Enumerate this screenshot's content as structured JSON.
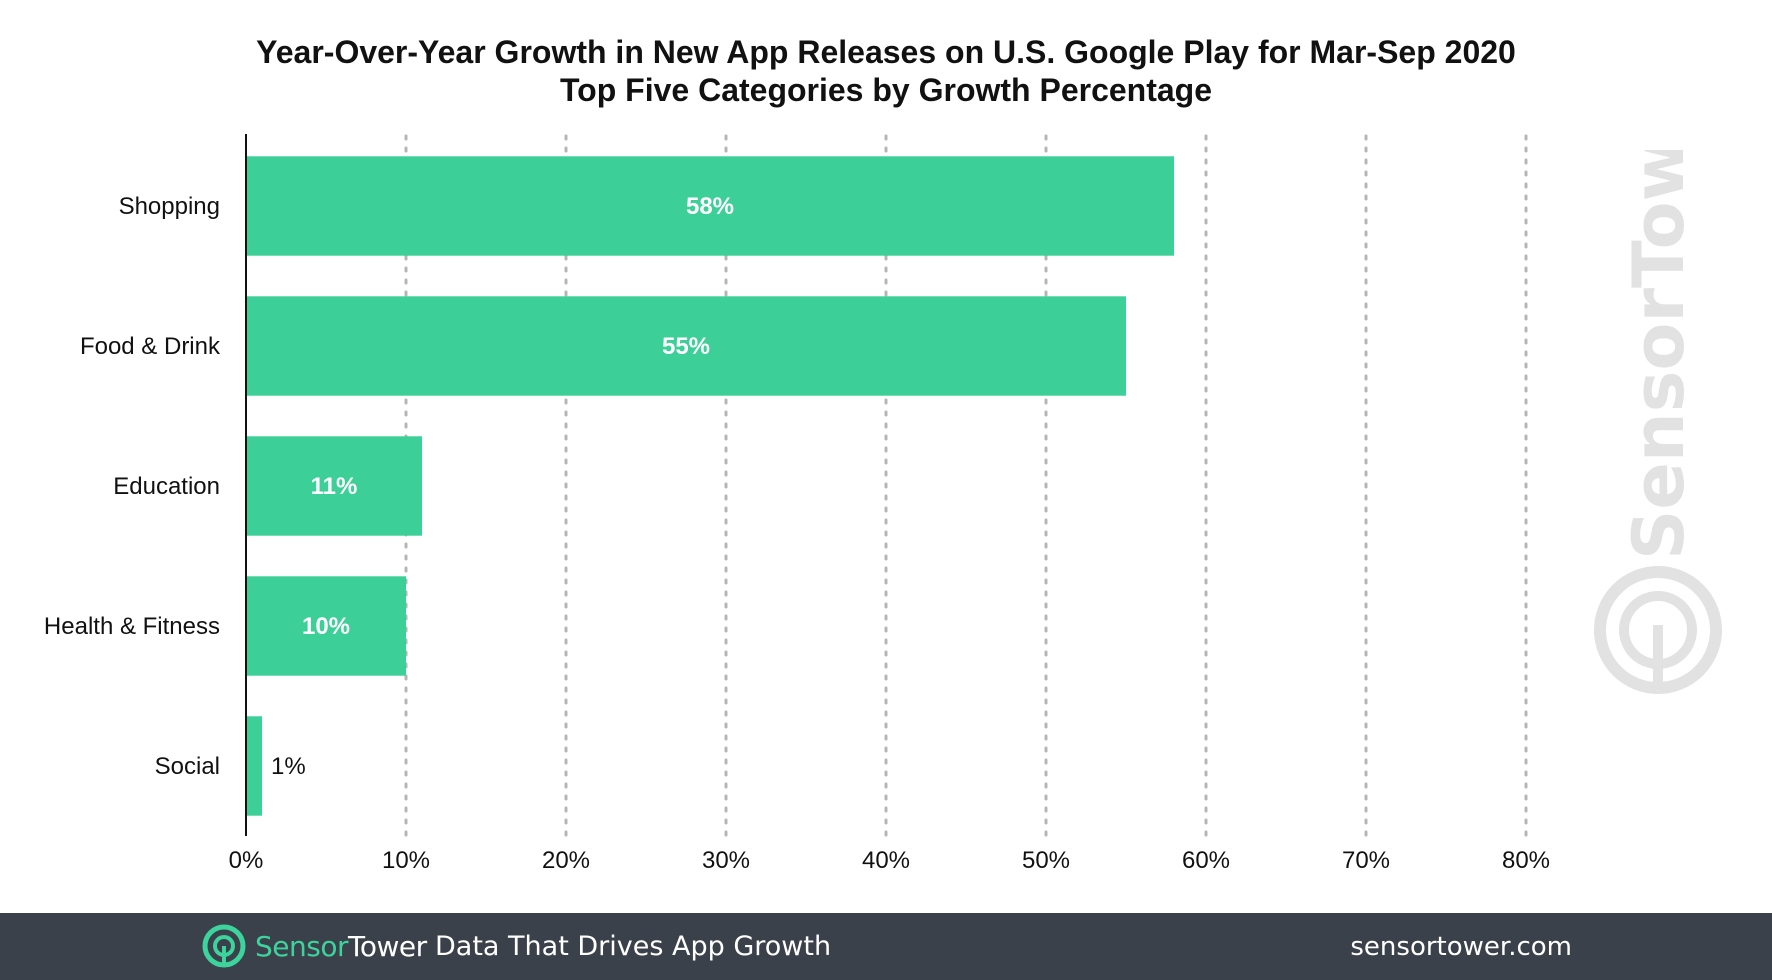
{
  "chart_data": {
    "type": "bar",
    "orientation": "horizontal",
    "title": "Year-Over-Year Growth in New App Releases on U.S. Google Play for Mar-Sep 2020",
    "subtitle": "Top Five Categories by Growth Percentage",
    "categories": [
      "Shopping",
      "Food & Drink",
      "Education",
      "Health & Fitness",
      "Social"
    ],
    "values": [
      58,
      55,
      11,
      10,
      1
    ],
    "data_labels": [
      "58%",
      "55%",
      "11%",
      "10%",
      "1%"
    ],
    "xlim": [
      0,
      80
    ],
    "xticks": [
      0,
      10,
      20,
      30,
      40,
      50,
      60,
      70,
      80
    ],
    "xtick_labels": [
      "0%",
      "10%",
      "20%",
      "30%",
      "40%",
      "50%",
      "60%",
      "70%",
      "80%"
    ],
    "grid": "vertical dotted",
    "bar_color": "#3ccf97"
  },
  "watermark": {
    "text": "SensorTower"
  },
  "footer": {
    "brand_part1": "Sensor",
    "brand_part2": "Tower",
    "tagline": "Data That Drives App Growth",
    "url": "sensortower.com",
    "background": "#3b414a"
  }
}
